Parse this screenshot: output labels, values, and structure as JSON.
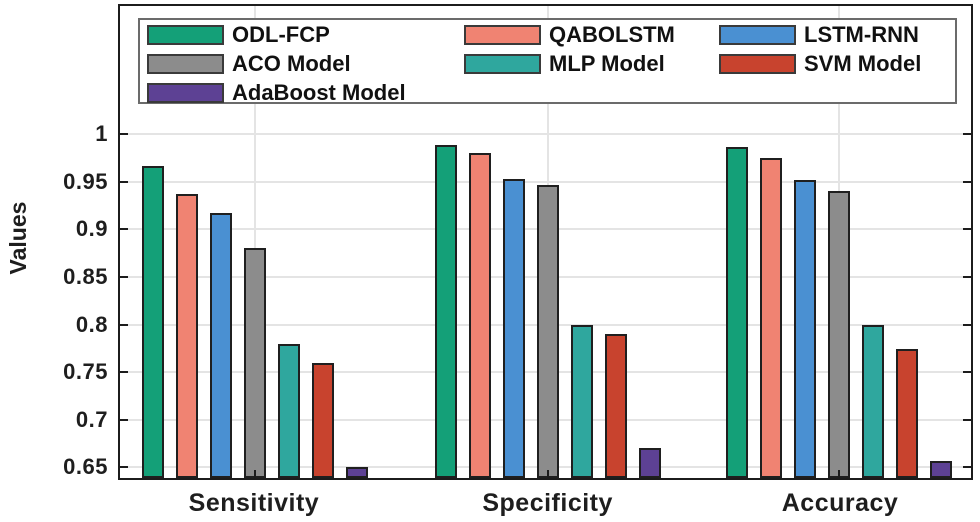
{
  "chart_data": {
    "type": "bar",
    "title": "",
    "xlabel": "",
    "ylabel": "Values",
    "categories": [
      "Sensitivity",
      "Specificity",
      "Accuracy"
    ],
    "series": [
      {
        "name": "ODL-FCP",
        "color": "#14a078",
        "values": [
          0.967,
          0.989,
          0.986
        ]
      },
      {
        "name": "QABOLSTM",
        "color": "#f08372",
        "values": [
          0.937,
          0.98,
          0.975
        ]
      },
      {
        "name": "LSTM-RNN",
        "color": "#4a90d2",
        "values": [
          0.917,
          0.953,
          0.952
        ]
      },
      {
        "name": "ACO Model",
        "color": "#8c8c8c",
        "values": [
          0.88,
          0.947,
          0.94
        ]
      },
      {
        "name": "MLP Model",
        "color": "#2fa79e",
        "values": [
          0.78,
          0.8,
          0.799
        ]
      },
      {
        "name": "SVM Model",
        "color": "#c8432e",
        "values": [
          0.76,
          0.79,
          0.774
        ]
      },
      {
        "name": "AdaBoost Model",
        "color": "#5d4194",
        "values": [
          0.65,
          0.67,
          0.657
        ]
      }
    ],
    "yticks": [
      0.65,
      0.7,
      0.75,
      0.8,
      0.85,
      0.9,
      0.95,
      1
    ],
    "ytick_labels": [
      "0.65",
      "0.7",
      "0.75",
      "0.8",
      "0.85",
      "0.9",
      "0.95",
      "1"
    ],
    "ylim": [
      0.6367,
      1.1367
    ],
    "grid": true,
    "legend_position": "top-inside",
    "legend_columns": 3
  },
  "colors": {
    "axis": "#1c1c1c",
    "grid": "#e4e4e4",
    "bar_edge": "#1f1f1f",
    "text": "#1e1e1e",
    "legend_border": "#6b6b6b",
    "background": "#ffffff"
  }
}
